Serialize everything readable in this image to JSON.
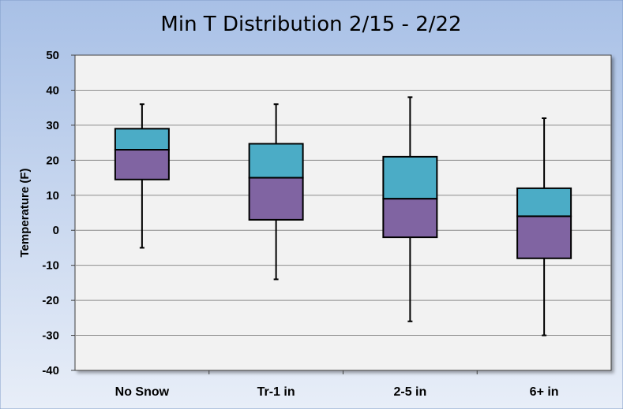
{
  "chart_data": {
    "type": "boxplot",
    "title": "Min T Distribution  2/15 - 2/22",
    "ylabel": "Temperature (F)",
    "xlabel": "",
    "ylim": [
      -40,
      50
    ],
    "yticks": [
      50,
      40,
      30,
      20,
      10,
      0,
      -10,
      -20,
      -30,
      -40
    ],
    "grid": true,
    "categories": [
      "No Snow",
      "Tr-1 in",
      "2-5 in",
      "6+ in"
    ],
    "boxes": [
      {
        "min": -5,
        "q1": 14.5,
        "median": 23,
        "q3": 29,
        "max": 36
      },
      {
        "min": -14,
        "q1": 3,
        "median": 15,
        "q3": 24.7,
        "max": 36
      },
      {
        "min": -26,
        "q1": -2,
        "median": 9,
        "q3": 21,
        "max": 38
      },
      {
        "min": -30,
        "q1": -8,
        "median": 4,
        "q3": 12,
        "max": 32
      }
    ],
    "colors": {
      "upper_box": "#4bacc6",
      "lower_box": "#8064a2",
      "plot_background": "#f2f2f2",
      "background_top": "#a8c0e6",
      "background_bottom": "#e8eef8"
    }
  }
}
